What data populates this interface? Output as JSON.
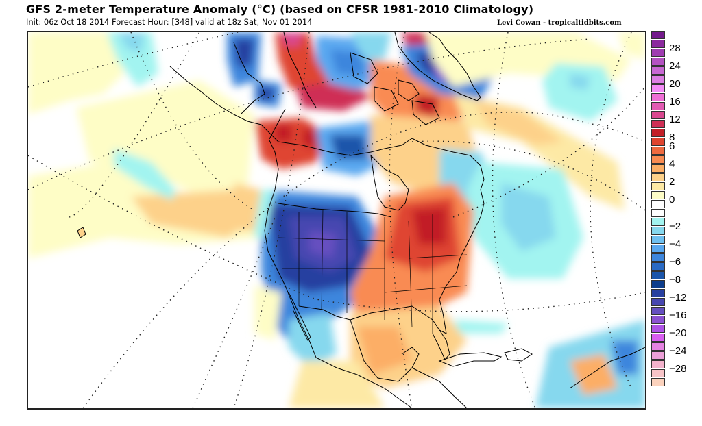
{
  "header": {
    "title": "GFS 2-meter Temperature Anomaly (°C) (based on CFSR 1981-2010 Climatology)",
    "subtitle": "Init: 06z Oct 18 2014 Forecast Hour: [348] valid at 18z Sat, Nov 01 2014",
    "credit": "Levi Cowan - tropicaltidbits.com"
  },
  "map": {
    "region": "North America",
    "variable": "2-meter Temperature Anomaly",
    "units": "°C"
  },
  "colorbar": {
    "colors": [
      "#741a8c",
      "#8b2a9e",
      "#9f3cb1",
      "#b452c2",
      "#c868d3",
      "#dc7ee3",
      "#f48cf7",
      "#ef6fd6",
      "#e25bb3",
      "#d9478f",
      "#cf2f55",
      "#c21f27",
      "#df4530",
      "#ee6a40",
      "#f98b52",
      "#fcae66",
      "#fdd18a",
      "#fde9a5",
      "#fefdc6",
      "#ffffff",
      "#ffffff",
      "#a2f4f0",
      "#86d8ee",
      "#6fc0f0",
      "#5aa8f0",
      "#3d86dd"
    ],
    "colors_low": [
      "#2a6ac4",
      "#1b55aa",
      "#0d3d8c",
      "#2840a0",
      "#4747b0",
      "#6650c0",
      "#8c52d2",
      "#ae52e6",
      "#d85ef0",
      "#e583e2",
      "#eca0d8",
      "#f2b2cc",
      "#f7c4c8",
      "#fbd2bd"
    ],
    "labels": [
      "28",
      "24",
      "20",
      "16",
      "12",
      "8",
      "6",
      "4",
      "2",
      "0",
      "-2",
      "-4",
      "-6",
      "-8",
      "-12",
      "-16",
      "-20",
      "-24",
      "-28"
    ]
  }
}
